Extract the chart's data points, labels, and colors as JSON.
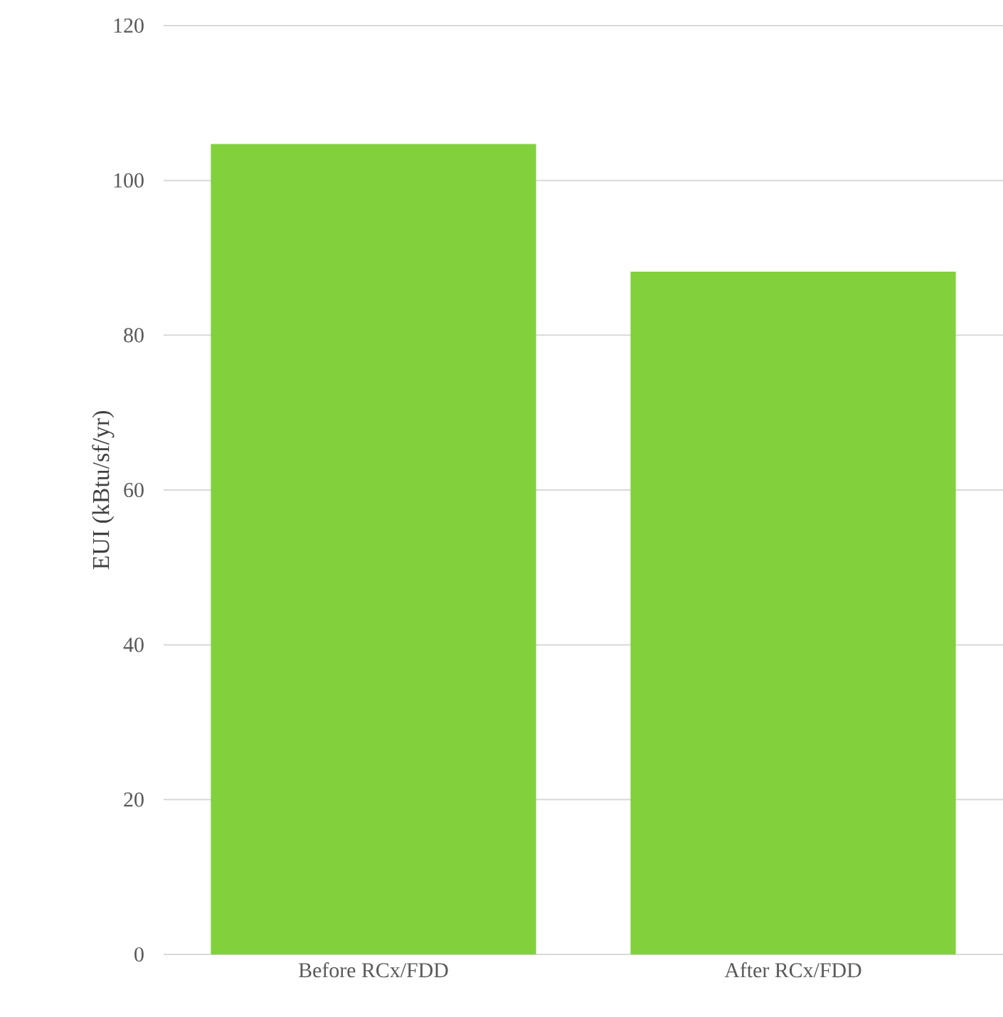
{
  "chart_data": {
    "type": "bar",
    "ylabel": "EUI (kBtu/sf/yr)",
    "categories": [
      "Before RCx/FDD",
      "After RCx/FDD"
    ],
    "values": [
      104.7,
      88.2
    ],
    "color": "#82d13c",
    "ylim": [
      0,
      120
    ],
    "yticks": [
      0,
      20,
      40,
      60,
      80,
      100,
      120
    ],
    "grid": "y"
  }
}
